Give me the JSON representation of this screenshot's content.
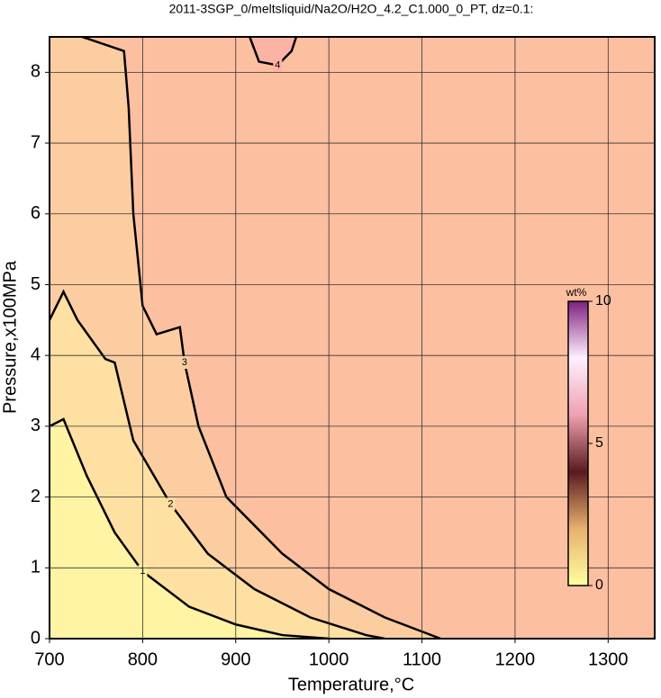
{
  "chart_data": {
    "type": "contour",
    "title": "2011-3SGP_0/meltsliquid/Na2O/H2O_4.2_C1.000_0_PT, dz=0.1:",
    "xlabel": "Temperature,°C",
    "ylabel": "Pressure,x100MPa",
    "xlim": [
      700,
      1350
    ],
    "ylim": [
      0,
      8.5
    ],
    "xticks": [
      700,
      800,
      900,
      1000,
      1100,
      1200,
      1300
    ],
    "yticks": [
      0,
      1,
      2,
      3,
      4,
      5,
      6,
      7,
      8
    ],
    "grid": true,
    "background": "#fcbfa0",
    "contours": [
      {
        "level": 3,
        "fill": "#fdcda2",
        "x": [
          735,
          780,
          785,
          790,
          800,
          815,
          840,
          845,
          860,
          890,
          950,
          1000,
          1060,
          1100,
          1120
        ],
        "y": [
          8.5,
          8.3,
          7.5,
          6,
          4.7,
          4.3,
          4.4,
          3.9,
          3.0,
          2.0,
          1.2,
          0.7,
          0.3,
          0.1,
          0
        ]
      },
      {
        "level": 2,
        "fill": "#fde0a2",
        "x": [
          700,
          715,
          730,
          760,
          770,
          790,
          830,
          870,
          920,
          980,
          1040,
          1060
        ],
        "y": [
          4.5,
          4.9,
          4.5,
          3.95,
          3.9,
          2.8,
          1.9,
          1.2,
          0.7,
          0.3,
          0.05,
          0
        ]
      },
      {
        "level": 1,
        "fill": "#fff3a4",
        "x": [
          700,
          715,
          740,
          770,
          800,
          850,
          900,
          950,
          1000
        ],
        "y": [
          3.0,
          3.1,
          2.3,
          1.5,
          0.95,
          0.45,
          0.2,
          0.05,
          0
        ]
      },
      {
        "level": 4,
        "fill": "#fbb3a6",
        "x": [
          915,
          925,
          945,
          960,
          965
        ],
        "y": [
          8.5,
          8.15,
          8.1,
          8.3,
          8.5
        ]
      }
    ],
    "colorbar": {
      "label": "wt%",
      "lim": [
        0,
        10
      ],
      "ticks": [
        0,
        5,
        10
      ],
      "colormap": [
        "#ffffa0",
        "#e8b070",
        "#5a1a20",
        "#f0a0b0",
        "#fff0ff",
        "#802080"
      ]
    }
  }
}
